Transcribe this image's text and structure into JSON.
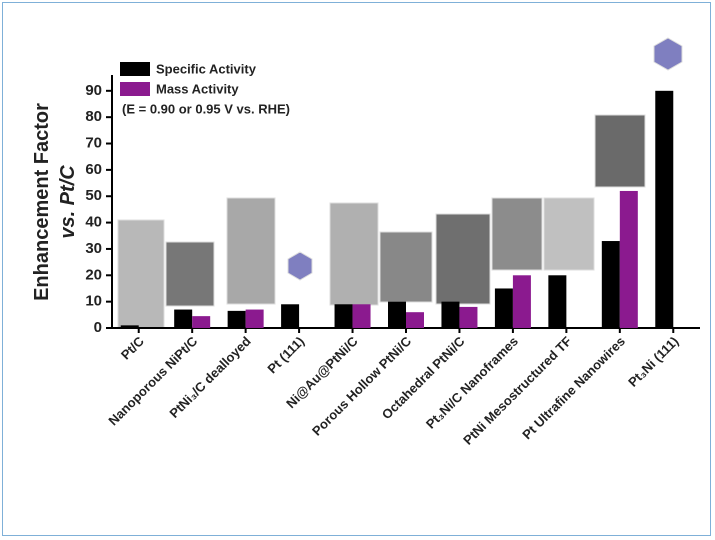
{
  "chart_data": {
    "type": "bar",
    "y_label": "Enhancement Factor",
    "y_label_2": "vs. Pt/C",
    "legend_note": "(E = 0.90 or 0.95 V vs. RHE)",
    "categories": [
      "Pt/C",
      "Nanoporous NiPt/C",
      "PtNi₃/C dealloyed",
      "Pt (111)",
      "Ni@Au@PtNi/C",
      "Porous Hollow PtNi/C",
      "Octahedral PtNi/C",
      "Pt₃Ni/C Nanoframes",
      "PtNi Mesostructured TF",
      "Pt Ultrafine Nanowires",
      "Pt₃Ni (111)"
    ],
    "series": [
      {
        "name": "Specific Activity",
        "color": "#000000",
        "values": [
          1,
          7,
          6.5,
          9,
          9,
          10,
          10,
          15,
          20,
          33,
          90
        ]
      },
      {
        "name": "Mass Activity",
        "color": "#8b1a8f",
        "values": [
          null,
          4.5,
          7,
          null,
          9,
          6,
          8,
          20,
          null,
          52,
          null
        ]
      }
    ],
    "ylim": [
      0,
      96
    ],
    "yticks": [
      0,
      10,
      20,
      30,
      40,
      50,
      60,
      70,
      80,
      90
    ]
  }
}
